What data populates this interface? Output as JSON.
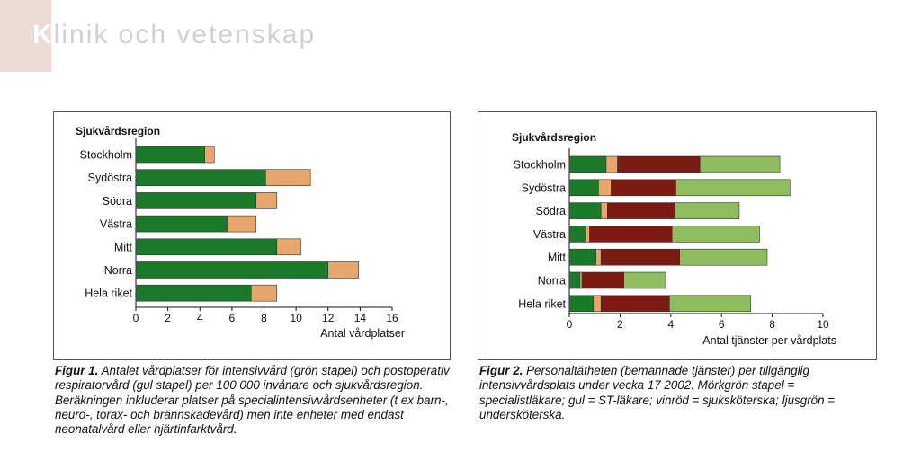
{
  "header": {
    "initial": "K",
    "rest": "linik och vetenskap"
  },
  "chart_data": [
    {
      "type": "bar",
      "orientation": "horizontal",
      "stacked": true,
      "region_label": "Sjukvårdsregion",
      "xlabel": "Antal vårdplatser",
      "xlim": [
        0,
        16
      ],
      "xticks": [
        0,
        2,
        4,
        6,
        8,
        10,
        12,
        14,
        16
      ],
      "categories": [
        "Stockholm",
        "Sydöstra",
        "Södra",
        "Västra",
        "Mitt",
        "Norra",
        "Hela riket"
      ],
      "series": [
        {
          "color": "#1a7a2a",
          "values": [
            4.3,
            8.1,
            7.5,
            5.7,
            8.8,
            12.0,
            7.2
          ]
        },
        {
          "color": "#e6a66e",
          "values": [
            0.6,
            2.8,
            1.3,
            1.8,
            1.5,
            1.9,
            1.6
          ]
        }
      ]
    },
    {
      "type": "bar",
      "orientation": "horizontal",
      "stacked": true,
      "region_label": "Sjukvårdsregion",
      "xlabel": "Antal tjänster per vårdplats",
      "xlim": [
        0,
        10
      ],
      "xticks": [
        0,
        2,
        4,
        6,
        8,
        10
      ],
      "categories": [
        "Stockholm",
        "Sydöstra",
        "Södra",
        "Västra",
        "Mitt",
        "Norra",
        "Hela riket"
      ],
      "series": [
        {
          "color": "#1a7a2a",
          "values": [
            1.45,
            1.15,
            1.25,
            0.65,
            1.05,
            0.42,
            0.95
          ]
        },
        {
          "color": "#e6a66e",
          "values": [
            0.45,
            0.5,
            0.25,
            0.15,
            0.2,
            0.08,
            0.3
          ]
        },
        {
          "color": "#7a1a12",
          "values": [
            3.25,
            2.55,
            2.65,
            3.25,
            3.1,
            1.65,
            2.7
          ]
        },
        {
          "color": "#8fbc5e",
          "values": [
            3.15,
            4.5,
            2.55,
            3.45,
            3.45,
            1.65,
            3.2
          ]
        }
      ]
    }
  ],
  "captions": [
    {
      "label": "Figur 1.",
      "text": "Antalet vårdplatser för intensivvård (grön stapel) och postoperativ respiratorvård (gul stapel) per 100 000 invånare och sjukvårdsregion. Beräkningen inkluderar platser på specialintensivvårdsenheter (t ex barn-, neuro-, torax- och brännskadevård) men inte enheter med endast neonatalvård eller hjärtinfarktvård."
    },
    {
      "label": "Figur 2.",
      "text": "Personaltätheten (bemannade tjänster) per tillgänglig intensivvårdsplats under vecka 17 2002. Mörkgrön stapel = specialistläkare; gul = ST-läkare; vinröd = sjuksköterska; ljusgrön = undersköterska."
    }
  ]
}
